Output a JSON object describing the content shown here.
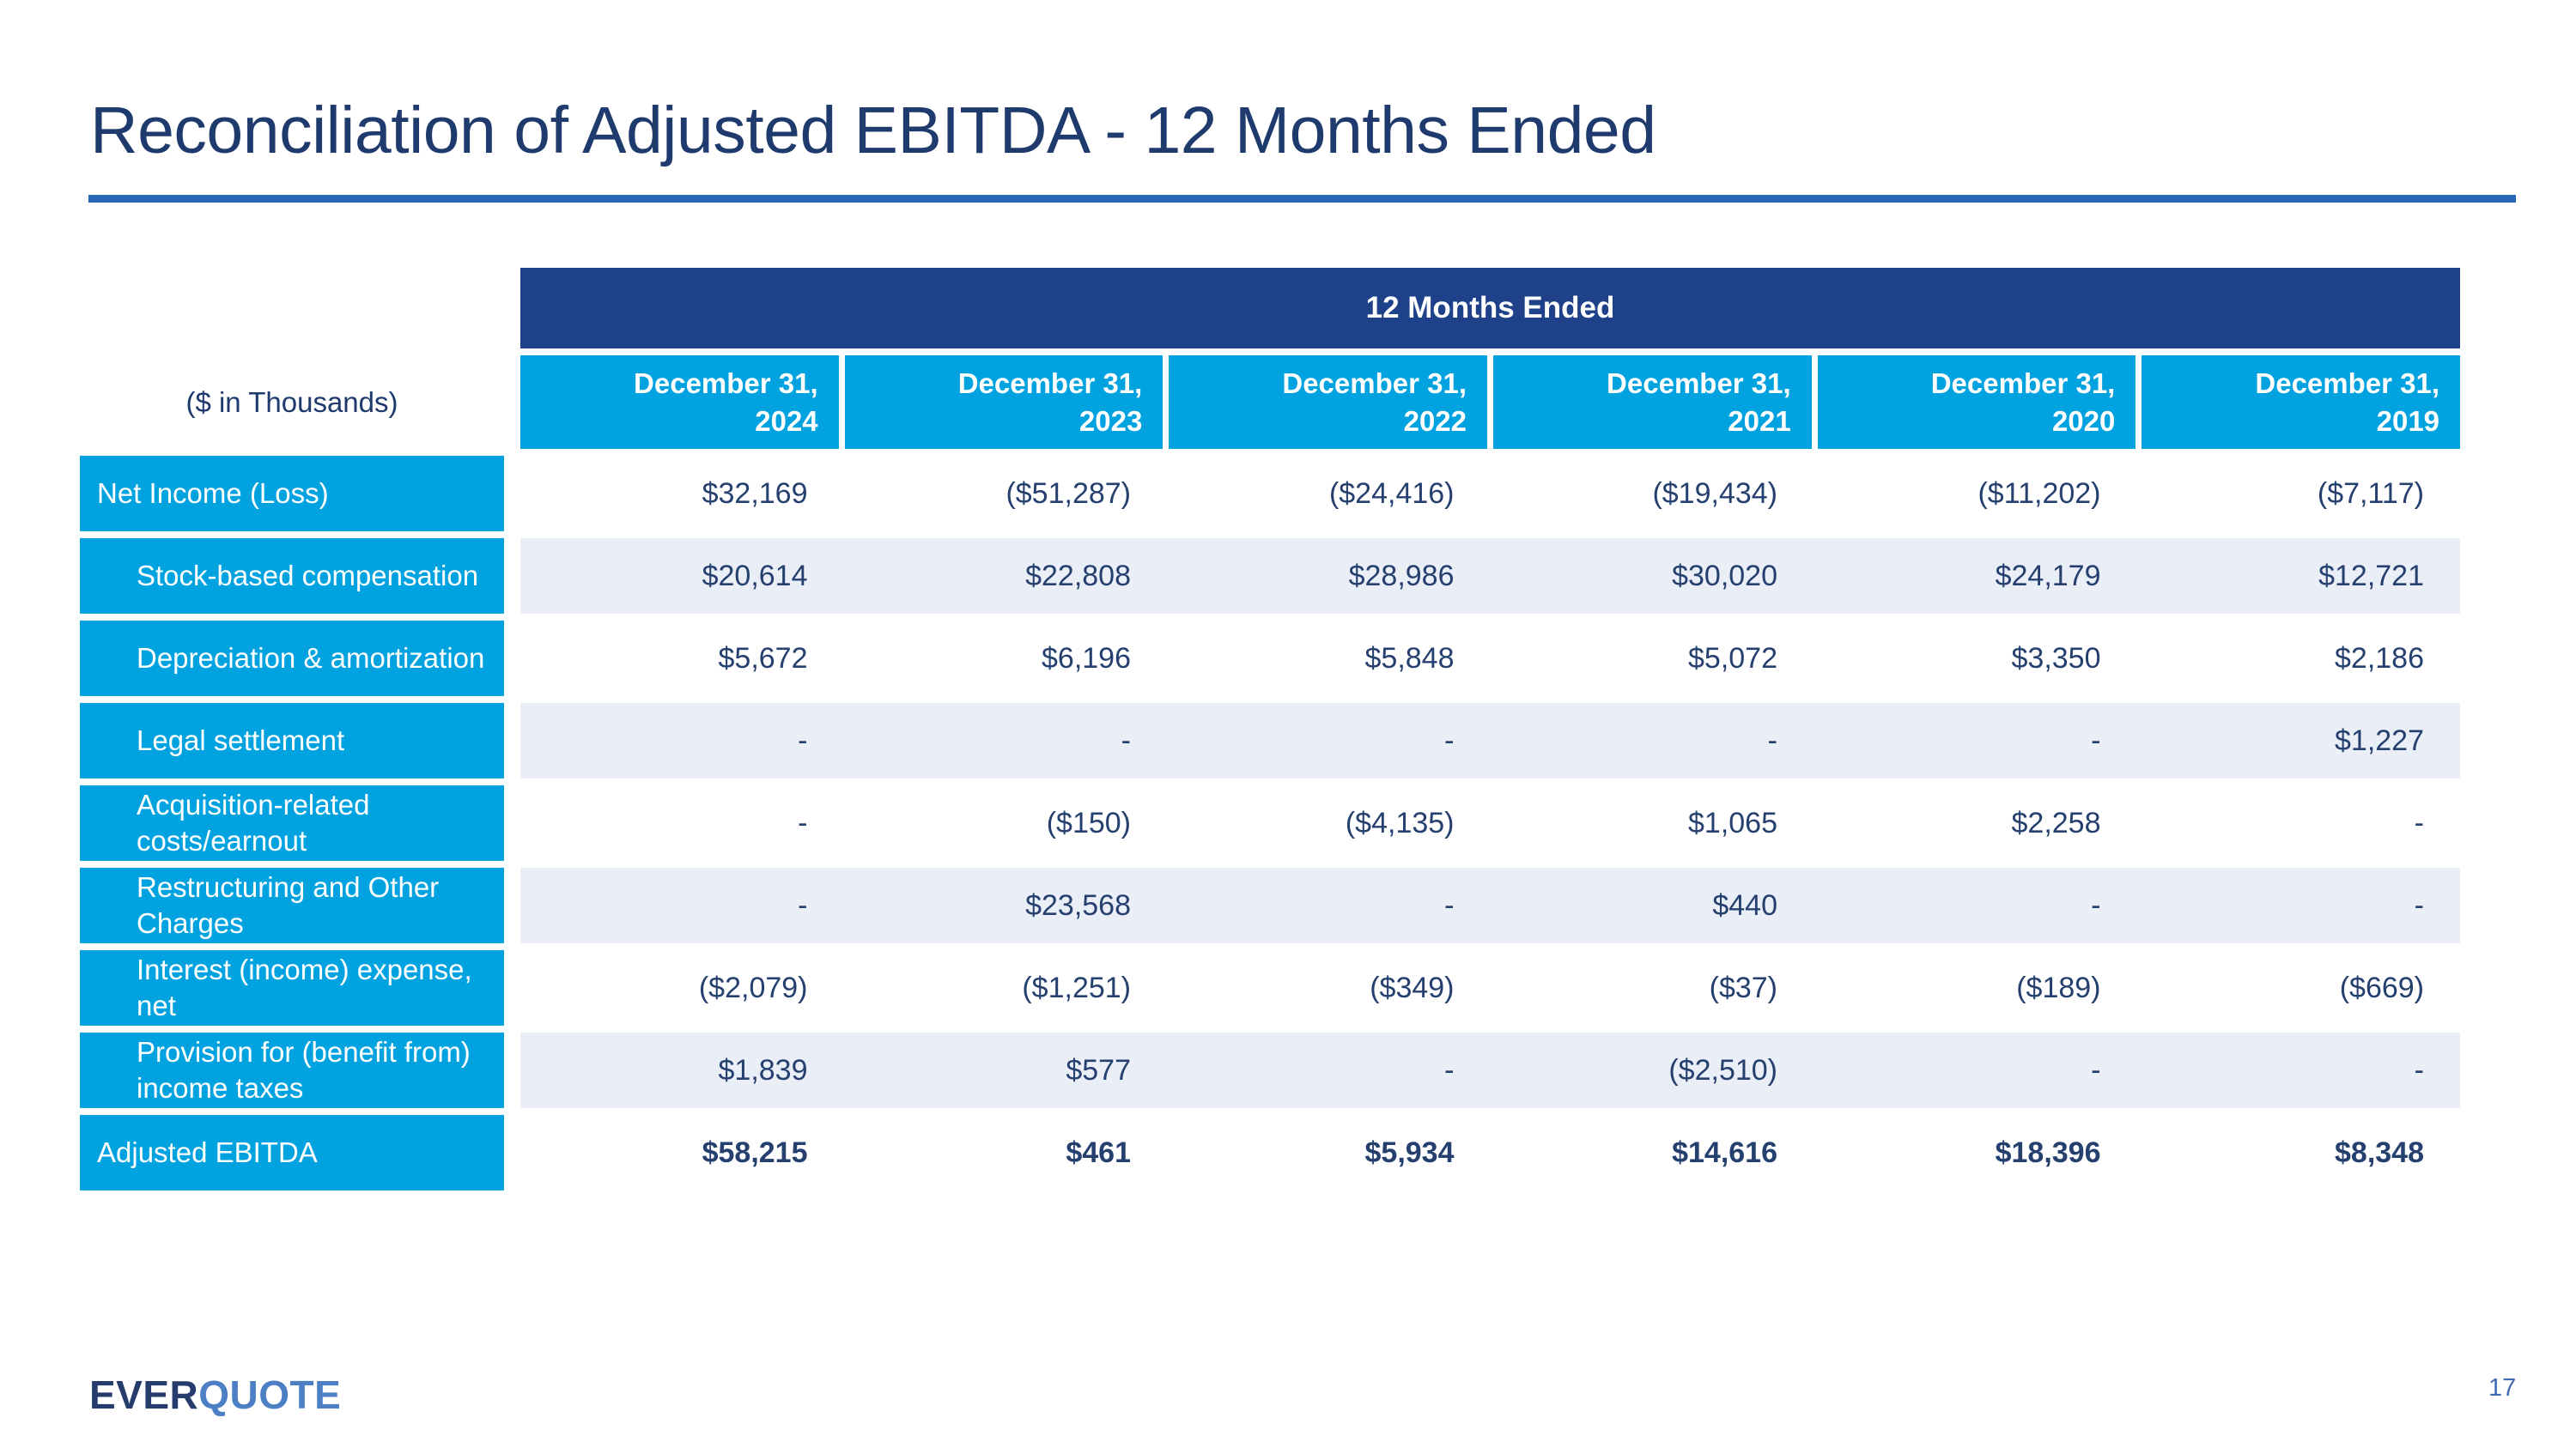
{
  "page": {
    "title": "Reconciliation of Adjusted EBITDA - 12 Months Ended",
    "page_number": "17"
  },
  "logo": {
    "ever": "EVER",
    "quote": "QUOTE"
  },
  "table": {
    "banner": "12 Months Ended",
    "unit_label": "($ in Thousands)",
    "columns": [
      {
        "line1": "December 31,",
        "line2": "2024"
      },
      {
        "line1": "December 31,",
        "line2": "2023"
      },
      {
        "line1": "December 31,",
        "line2": "2022"
      },
      {
        "line1": "December 31,",
        "line2": "2021"
      },
      {
        "line1": "December 31,",
        "line2": "2020"
      },
      {
        "line1": "December 31,",
        "line2": "2019"
      }
    ],
    "rows": [
      {
        "label": "Net Income (Loss)",
        "indent": false,
        "shaded": false,
        "bold": false,
        "values": [
          "$32,169",
          "($51,287)",
          "($24,416)",
          "($19,434)",
          "($11,202)",
          "($7,117)"
        ]
      },
      {
        "label": "Stock-based compensation",
        "indent": true,
        "shaded": true,
        "bold": false,
        "values": [
          "$20,614",
          "$22,808",
          "$28,986",
          "$30,020",
          "$24,179",
          "$12,721"
        ]
      },
      {
        "label": "Depreciation & amortization",
        "indent": true,
        "shaded": false,
        "bold": false,
        "values": [
          "$5,672",
          "$6,196",
          "$5,848",
          "$5,072",
          "$3,350",
          "$2,186"
        ]
      },
      {
        "label": "Legal settlement",
        "indent": true,
        "shaded": true,
        "bold": false,
        "values": [
          "-",
          "-",
          "-",
          "-",
          "-",
          "$1,227"
        ]
      },
      {
        "label": "Acquisition-related costs/earnout",
        "indent": true,
        "shaded": false,
        "bold": false,
        "values": [
          "-",
          "($150)",
          "($4,135)",
          "$1,065",
          "$2,258",
          "-"
        ]
      },
      {
        "label": "Restructuring and Other Charges",
        "indent": true,
        "shaded": true,
        "bold": false,
        "values": [
          "-",
          "$23,568",
          "-",
          "$440",
          "-",
          "-"
        ]
      },
      {
        "label": "Interest (income) expense, net",
        "indent": true,
        "shaded": false,
        "bold": false,
        "values": [
          "($2,079)",
          "($1,251)",
          "($349)",
          "($37)",
          "($189)",
          "($669)"
        ]
      },
      {
        "label": "Provision for (benefit from) income taxes",
        "indent": true,
        "shaded": true,
        "bold": false,
        "values": [
          "$1,839",
          "$577",
          "-",
          "($2,510)",
          "-",
          "-"
        ]
      },
      {
        "label": "Adjusted EBITDA",
        "indent": false,
        "shaded": false,
        "bold": true,
        "values": [
          "$58,215",
          "$461",
          "$5,934",
          "$14,616",
          "$18,396",
          "$8,348"
        ]
      }
    ]
  },
  "colors": {
    "title_navy": "#1f3a6d",
    "underline_blue": "#2667b8",
    "banner_navy": "#1e4189",
    "header_cyan": "#00a2df",
    "shaded_row": "#eaeef7",
    "value_navy": "#25406f",
    "logo_navy": "#253c6d",
    "logo_blue": "#4d7fc4",
    "page_number_blue": "#3e6cb3"
  }
}
